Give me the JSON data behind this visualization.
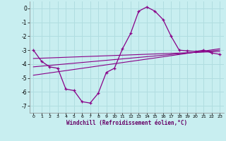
{
  "xlabel": "Windchill (Refroidissement éolien,°C)",
  "background_color": "#c8eef0",
  "grid_color": "#b0dde0",
  "line_color": "#880088",
  "xlim": [
    -0.5,
    23.5
  ],
  "ylim": [
    -7.5,
    0.5
  ],
  "yticks": [
    0,
    -1,
    -2,
    -3,
    -4,
    -5,
    -6,
    -7
  ],
  "xticks": [
    0,
    1,
    2,
    3,
    4,
    5,
    6,
    7,
    8,
    9,
    10,
    11,
    12,
    13,
    14,
    15,
    16,
    17,
    18,
    19,
    20,
    21,
    22,
    23
  ],
  "main_x": [
    0,
    1,
    2,
    3,
    4,
    5,
    6,
    7,
    8,
    9,
    10,
    11,
    12,
    13,
    14,
    15,
    16,
    17,
    18,
    19,
    20,
    21,
    22,
    23
  ],
  "main_y": [
    -3.0,
    -3.8,
    -4.2,
    -4.3,
    -5.8,
    -5.9,
    -6.7,
    -6.8,
    -6.1,
    -4.6,
    -4.3,
    -2.9,
    -1.8,
    -0.2,
    0.1,
    -0.2,
    -0.8,
    -2.0,
    -3.0,
    -3.05,
    -3.1,
    -3.0,
    -3.2,
    -3.3
  ],
  "line2_x": [
    0,
    23
  ],
  "line2_y": [
    -3.6,
    -3.1
  ],
  "line3_x": [
    0,
    23
  ],
  "line3_y": [
    -4.2,
    -3.0
  ],
  "line4_x": [
    0,
    23
  ],
  "line4_y": [
    -4.8,
    -2.9
  ]
}
